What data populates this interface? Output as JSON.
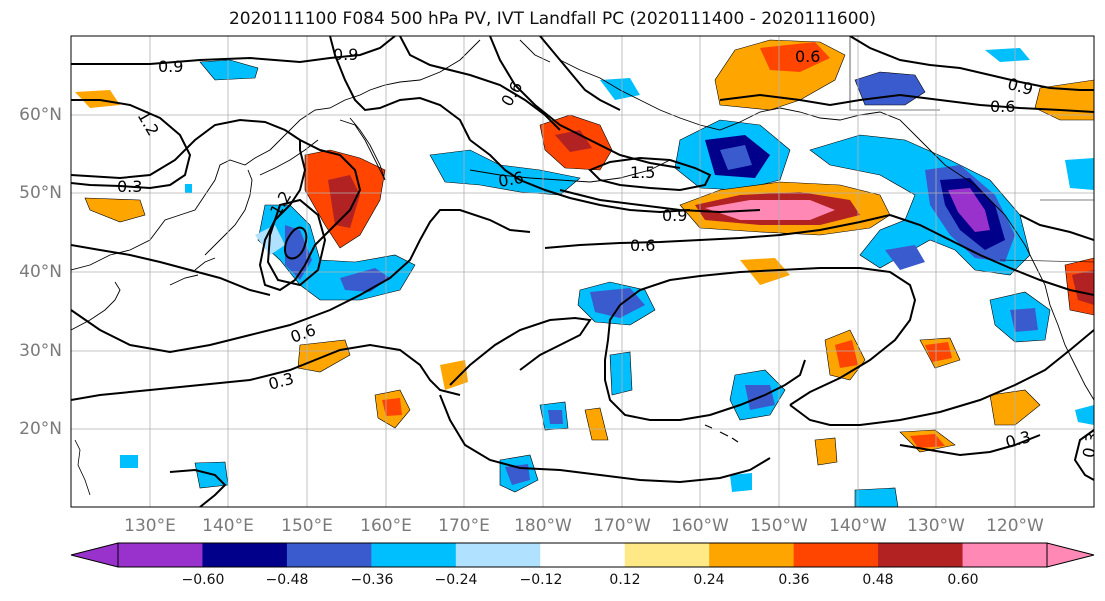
{
  "title": "2020111100 F084 500 hPa PV, IVT Landfall PC (2020111400 - 2020111600)",
  "lat_labels": [
    "60°N",
    "50°N",
    "40°N",
    "30°N",
    "20°N"
  ],
  "lon_labels": [
    "130°E",
    "140°E",
    "150°E",
    "160°E",
    "170°E",
    "180°W",
    "170°W",
    "160°W",
    "150°W",
    "140°W",
    "130°W",
    "120°W"
  ],
  "contour_labels": [
    "0.9",
    "0.9",
    "0.6",
    "1.2",
    "0.3",
    "1.2",
    "0.6",
    "0.3",
    "0.6",
    "1.5",
    "0.9",
    "0.6",
    "0.6",
    "0.9",
    "0.6",
    "0.3",
    "0.3"
  ],
  "colorbar": {
    "colors": [
      "#9932cc",
      "#00008b",
      "#3a5bcd",
      "#00bfff",
      "#b0e2ff",
      "#ffffff",
      "#ffe986",
      "#ffa500",
      "#ff4500",
      "#b22222",
      "#ff88b4"
    ],
    "tick_labels": [
      "−0.60",
      "−0.48",
      "−0.36",
      "−0.24",
      "−0.12",
      "0.12",
      "0.24",
      "0.36",
      "0.48",
      "0.60"
    ]
  },
  "colors": {
    "coast": "#000000",
    "grid": "#b0b0b0",
    "contour": "#000000",
    "axis_label": "#7a7a7a"
  }
}
